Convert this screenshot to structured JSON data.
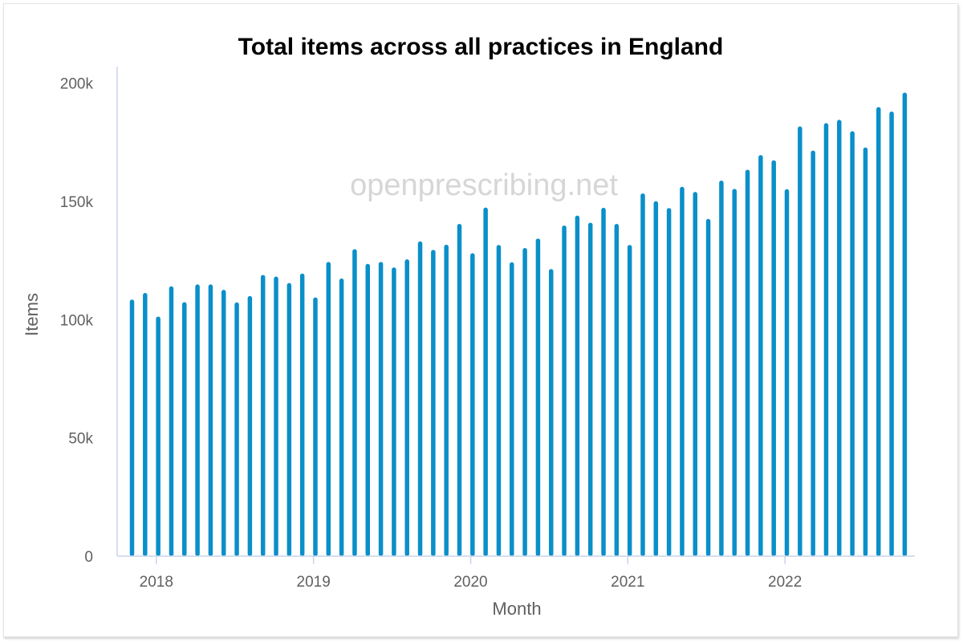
{
  "watermark": "openprescribing.net",
  "colors": {
    "bar": "#0a8fc9",
    "axis": "#c9d4ea",
    "text": "#606060"
  },
  "chart_data": {
    "type": "bar",
    "title": "Total items across all practices in England",
    "xlabel": "Month",
    "ylabel": "Items",
    "ylim": [
      0,
      207000
    ],
    "y_ticks": [
      0,
      50000,
      100000,
      150000,
      200000
    ],
    "y_tick_labels": [
      "0",
      "50k",
      "100k",
      "150k",
      "200k"
    ],
    "x_ticks": [
      "2018-01",
      "2019-01",
      "2020-01",
      "2021-01",
      "2022-01"
    ],
    "x_tick_labels": [
      "2018",
      "2019",
      "2020",
      "2021",
      "2022"
    ],
    "grid": false,
    "legend": "none",
    "categories": [
      "2017-12",
      "2018-01",
      "2018-02",
      "2018-03",
      "2018-04",
      "2018-05",
      "2018-06",
      "2018-07",
      "2018-08",
      "2018-09",
      "2018-10",
      "2018-11",
      "2018-12",
      "2019-01",
      "2019-02",
      "2019-03",
      "2019-04",
      "2019-05",
      "2019-06",
      "2019-07",
      "2019-08",
      "2019-09",
      "2019-10",
      "2019-11",
      "2019-12",
      "2020-01",
      "2020-02",
      "2020-03",
      "2020-04",
      "2020-05",
      "2020-06",
      "2020-07",
      "2020-08",
      "2020-09",
      "2020-10",
      "2020-11",
      "2020-12",
      "2021-01",
      "2021-02",
      "2021-03",
      "2021-04",
      "2021-05",
      "2021-06",
      "2021-07",
      "2021-08",
      "2021-09",
      "2021-10",
      "2021-11",
      "2021-12",
      "2022-01",
      "2022-02",
      "2022-03",
      "2022-04",
      "2022-05",
      "2022-06",
      "2022-07",
      "2022-08",
      "2022-09",
      "2022-10",
      "2022-11"
    ],
    "values": [
      108500,
      111300,
      101300,
      114100,
      107400,
      114900,
      114900,
      112600,
      107300,
      110000,
      118900,
      118200,
      115500,
      119500,
      109400,
      124400,
      117400,
      129800,
      123600,
      124400,
      122100,
      125500,
      133100,
      129500,
      131700,
      140500,
      128100,
      147400,
      131600,
      124300,
      130300,
      134300,
      121400,
      139800,
      144000,
      141000,
      147300,
      140500,
      131600,
      153400,
      150100,
      147200,
      156200,
      154000,
      142600,
      158800,
      155300,
      163400,
      169600,
      167400,
      155200,
      181700,
      171500,
      183100,
      184500,
      179700,
      172800,
      189900,
      188000,
      196000
    ]
  }
}
